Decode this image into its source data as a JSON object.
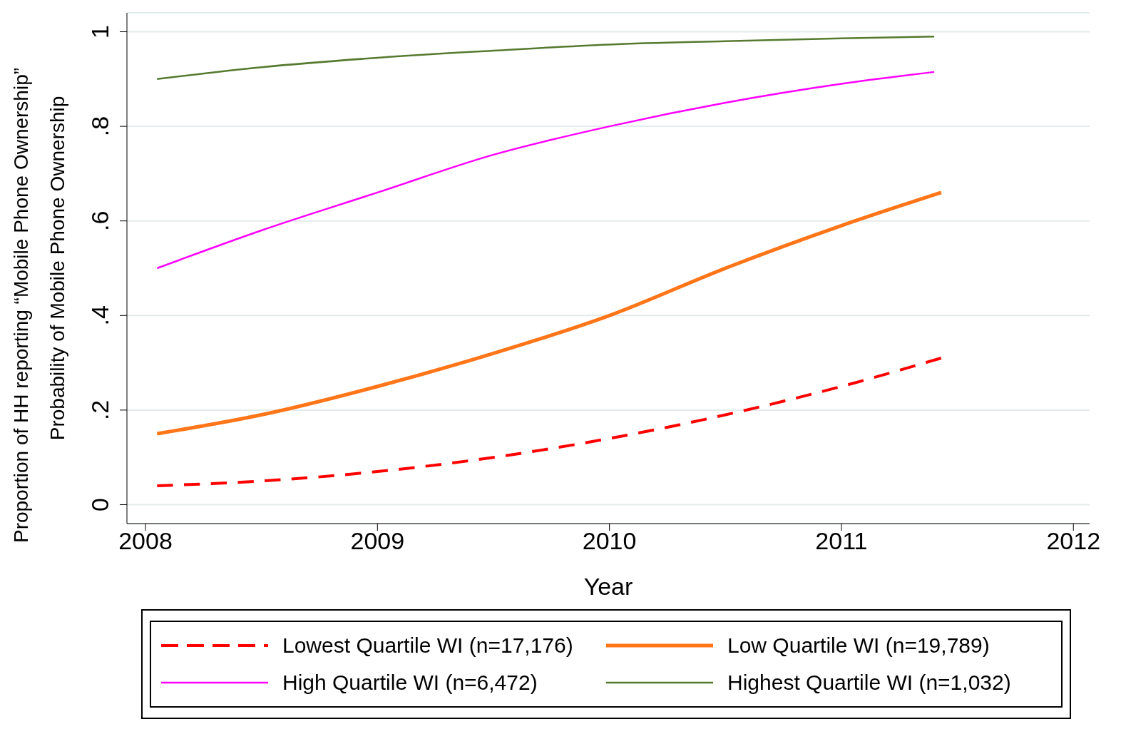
{
  "chart_data": {
    "type": "line",
    "xlabel": "Year",
    "ylabel": "Probability of Mobile Phone Ownership",
    "annotations": [
      "Proportion of HH reporting “Mobile Phone Ownership”"
    ],
    "xlim": [
      2007.92,
      2012.07
    ],
    "xticks": [
      2008,
      2009,
      2010,
      2011,
      2012
    ],
    "ylim": [
      -0.04,
      1.04
    ],
    "yticks": [
      {
        "value": 0,
        "label": "0"
      },
      {
        "value": 0.2,
        "label": ".2"
      },
      {
        "value": 0.4,
        "label": ".4"
      },
      {
        "value": 0.6,
        "label": ".6"
      },
      {
        "value": 0.8,
        "label": ".8"
      },
      {
        "value": 1,
        "label": "1"
      }
    ],
    "grid": "y",
    "legend": "bottom",
    "marker": "none",
    "series": [
      {
        "name": "Lowest Quartile WI (n=17,176)",
        "color": "#ff0000",
        "line_style": "dashed",
        "x": [
          2008.05,
          2008.5,
          2009,
          2009.5,
          2010,
          2010.5,
          2011,
          2011.43
        ],
        "values": [
          0.04,
          0.05,
          0.07,
          0.1,
          0.14,
          0.19,
          0.25,
          0.31
        ]
      },
      {
        "name": "Low Quartile WI (n=19,789)",
        "color": "#ff7518",
        "x": [
          2008.05,
          2008.5,
          2009,
          2009.5,
          2010,
          2010.5,
          2011,
          2011.43
        ],
        "values": [
          0.15,
          0.19,
          0.25,
          0.32,
          0.4,
          0.5,
          0.59,
          0.66
        ]
      },
      {
        "name": "High Quartile WI (n=6,472)",
        "color": "#ff00ff",
        "x": [
          2008.05,
          2008.5,
          2009,
          2009.5,
          2010,
          2010.5,
          2011,
          2011.4
        ],
        "values": [
          0.5,
          0.58,
          0.66,
          0.74,
          0.8,
          0.85,
          0.89,
          0.915
        ]
      },
      {
        "name": "Highest Quartile WI (n=1,032)",
        "color": "#557a2e",
        "x": [
          2008.05,
          2008.5,
          2009,
          2009.5,
          2010,
          2010.5,
          2011,
          2011.4
        ],
        "values": [
          0.9,
          0.925,
          0.945,
          0.96,
          0.973,
          0.98,
          0.986,
          0.99
        ]
      }
    ]
  }
}
